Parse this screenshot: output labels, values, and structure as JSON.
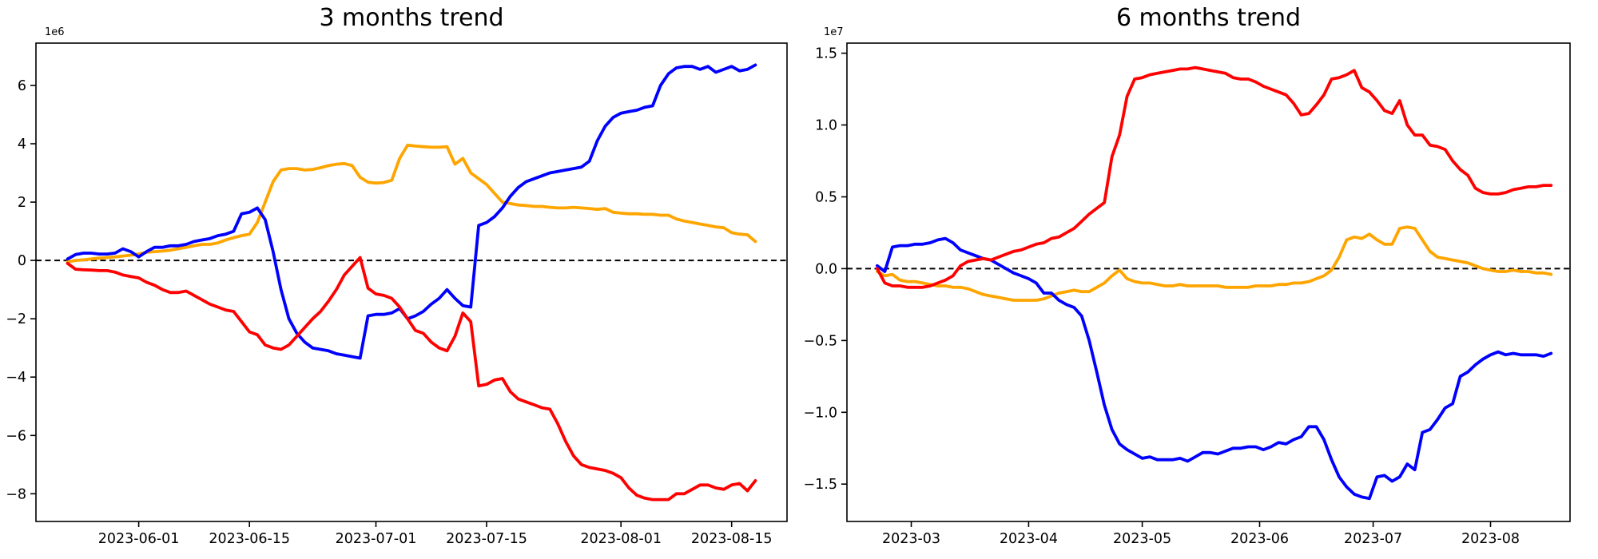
{
  "figure": {
    "background": "#ffffff"
  },
  "chart_data": [
    {
      "id": "left",
      "type": "line",
      "title": "3 months trend",
      "offset_label": "1e6",
      "unit_multiplier": 1000000,
      "grid": false,
      "legend": null,
      "xlim": [
        "2023-05-19",
        "2023-08-22"
      ],
      "ylim": [
        -8.95,
        7.45
      ],
      "x_start": "2023-05-23",
      "x_step_days": 1,
      "x_ticks": [
        {
          "date": "2023-06-01",
          "label": "2023-06-01"
        },
        {
          "date": "2023-06-15",
          "label": "2023-06-15"
        },
        {
          "date": "2023-07-01",
          "label": "2023-07-01"
        },
        {
          "date": "2023-07-15",
          "label": "2023-07-15"
        },
        {
          "date": "2023-08-01",
          "label": "2023-08-01"
        },
        {
          "date": "2023-08-15",
          "label": "2023-08-15"
        }
      ],
      "y_ticks": [
        {
          "value": 6,
          "label": "6"
        },
        {
          "value": 4,
          "label": "4"
        },
        {
          "value": 2,
          "label": "2"
        },
        {
          "value": 0,
          "label": "0"
        },
        {
          "value": -2,
          "label": "−2"
        },
        {
          "value": -4,
          "label": "−4"
        },
        {
          "value": -6,
          "label": "−6"
        },
        {
          "value": -8,
          "label": "−8"
        }
      ],
      "zero_line": {
        "y": 0,
        "style": "dashed",
        "color": "#000000"
      },
      "series": [
        {
          "name": "orange",
          "color": "#ffa500",
          "y": [
            -0.05,
            0.0,
            0.02,
            0.05,
            0.08,
            0.1,
            0.12,
            0.15,
            0.18,
            0.22,
            0.28,
            0.3,
            0.32,
            0.35,
            0.4,
            0.45,
            0.5,
            0.55,
            0.55,
            0.6,
            0.7,
            0.78,
            0.85,
            0.9,
            1.3,
            2.0,
            2.7,
            3.1,
            3.15,
            3.15,
            3.1,
            3.12,
            3.18,
            3.25,
            3.3,
            3.32,
            3.25,
            2.85,
            2.68,
            2.65,
            2.67,
            2.75,
            3.5,
            3.95,
            3.92,
            3.9,
            3.88,
            3.88,
            3.9,
            3.3,
            3.5,
            3.0,
            2.8,
            2.6,
            2.3,
            2.0,
            1.95,
            1.9,
            1.88,
            1.85,
            1.85,
            1.82,
            1.8,
            1.8,
            1.82,
            1.8,
            1.78,
            1.75,
            1.78,
            1.65,
            1.62,
            1.6,
            1.6,
            1.58,
            1.58,
            1.55,
            1.55,
            1.42,
            1.35,
            1.3,
            1.25,
            1.2,
            1.15,
            1.12,
            0.95,
            0.9,
            0.88,
            0.65
          ]
        },
        {
          "name": "blue",
          "color": "#0000ff",
          "y": [
            0.05,
            0.2,
            0.25,
            0.25,
            0.22,
            0.22,
            0.25,
            0.4,
            0.3,
            0.12,
            0.3,
            0.45,
            0.45,
            0.5,
            0.5,
            0.55,
            0.65,
            0.7,
            0.75,
            0.85,
            0.9,
            1.0,
            1.6,
            1.65,
            1.8,
            1.4,
            0.3,
            -1.0,
            -2.0,
            -2.5,
            -2.8,
            -3.0,
            -3.05,
            -3.1,
            -3.2,
            -3.25,
            -3.3,
            -3.35,
            -1.9,
            -1.85,
            -1.85,
            -1.8,
            -1.65,
            -2.0,
            -1.9,
            -1.75,
            -1.5,
            -1.3,
            -1.0,
            -1.3,
            -1.55,
            -1.6,
            1.2,
            1.3,
            1.5,
            1.8,
            2.2,
            2.5,
            2.7,
            2.8,
            2.9,
            3.0,
            3.05,
            3.1,
            3.15,
            3.2,
            3.4,
            4.1,
            4.6,
            4.9,
            5.05,
            5.1,
            5.15,
            5.25,
            5.3,
            6.0,
            6.4,
            6.6,
            6.65,
            6.65,
            6.55,
            6.65,
            6.45,
            6.55,
            6.65,
            6.5,
            6.55,
            6.7
          ]
        },
        {
          "name": "red",
          "color": "#ff0000",
          "y": [
            -0.1,
            -0.3,
            -0.32,
            -0.33,
            -0.35,
            -0.35,
            -0.4,
            -0.5,
            -0.55,
            -0.6,
            -0.75,
            -0.85,
            -1.0,
            -1.1,
            -1.1,
            -1.05,
            -1.2,
            -1.35,
            -1.5,
            -1.6,
            -1.7,
            -1.75,
            -2.1,
            -2.45,
            -2.55,
            -2.9,
            -3.0,
            -3.05,
            -2.9,
            -2.6,
            -2.3,
            -2.0,
            -1.75,
            -1.4,
            -1.0,
            -0.5,
            -0.2,
            0.1,
            -0.95,
            -1.15,
            -1.2,
            -1.3,
            -1.6,
            -2.0,
            -2.4,
            -2.5,
            -2.8,
            -3.0,
            -3.1,
            -2.6,
            -1.8,
            -2.1,
            -4.3,
            -4.25,
            -4.1,
            -4.05,
            -4.5,
            -4.75,
            -4.85,
            -4.95,
            -5.05,
            -5.1,
            -5.6,
            -6.2,
            -6.7,
            -7.0,
            -7.1,
            -7.15,
            -7.2,
            -7.3,
            -7.45,
            -7.8,
            -8.05,
            -8.15,
            -8.2,
            -8.2,
            -8.2,
            -8.0,
            -8.0,
            -7.85,
            -7.7,
            -7.7,
            -7.8,
            -7.85,
            -7.7,
            -7.65,
            -7.9,
            -7.55
          ]
        }
      ]
    },
    {
      "id": "right",
      "type": "line",
      "title": "6 months trend",
      "offset_label": "1e7",
      "unit_multiplier": 10000000,
      "grid": false,
      "legend": null,
      "xlim": [
        "2023-02-12",
        "2023-08-22"
      ],
      "ylim": [
        -1.76,
        1.57
      ],
      "x_start": "2023-02-20",
      "x_step_days": 2,
      "x_ticks": [
        {
          "date": "2023-03-01",
          "label": "2023-03"
        },
        {
          "date": "2023-04-01",
          "label": "2023-04"
        },
        {
          "date": "2023-05-01",
          "label": "2023-05"
        },
        {
          "date": "2023-06-01",
          "label": "2023-06"
        },
        {
          "date": "2023-07-01",
          "label": "2023-07"
        },
        {
          "date": "2023-08-01",
          "label": "2023-08"
        }
      ],
      "y_ticks": [
        {
          "value": 1.5,
          "label": "1.5"
        },
        {
          "value": 1.0,
          "label": "1.0"
        },
        {
          "value": 0.5,
          "label": "0.5"
        },
        {
          "value": 0.0,
          "label": "0.0"
        },
        {
          "value": -0.5,
          "label": "−0.5"
        },
        {
          "value": -1.0,
          "label": "−1.0"
        },
        {
          "value": -1.5,
          "label": "−1.5"
        }
      ],
      "zero_line": {
        "y": 0,
        "style": "dashed",
        "color": "#000000"
      },
      "series": [
        {
          "name": "orange",
          "color": "#ffa500",
          "y": [
            -0.02,
            -0.05,
            -0.04,
            -0.08,
            -0.09,
            -0.09,
            -0.1,
            -0.11,
            -0.12,
            -0.12,
            -0.13,
            -0.13,
            -0.14,
            -0.16,
            -0.18,
            -0.19,
            -0.2,
            -0.21,
            -0.22,
            -0.22,
            -0.22,
            -0.22,
            -0.21,
            -0.19,
            -0.17,
            -0.16,
            -0.15,
            -0.16,
            -0.16,
            -0.13,
            -0.1,
            -0.05,
            -0.01,
            -0.07,
            -0.09,
            -0.1,
            -0.1,
            -0.11,
            -0.12,
            -0.12,
            -0.11,
            -0.12,
            -0.12,
            -0.12,
            -0.12,
            -0.12,
            -0.13,
            -0.13,
            -0.13,
            -0.13,
            -0.12,
            -0.12,
            -0.12,
            -0.11,
            -0.11,
            -0.1,
            -0.1,
            -0.09,
            -0.07,
            -0.05,
            -0.01,
            0.08,
            0.2,
            0.22,
            0.21,
            0.24,
            0.2,
            0.17,
            0.17,
            0.28,
            0.29,
            0.28,
            0.2,
            0.12,
            0.08,
            0.07,
            0.06,
            0.05,
            0.04,
            0.02,
            0.0,
            -0.01,
            -0.02,
            -0.02,
            -0.01,
            -0.02,
            -0.02,
            -0.03,
            -0.03,
            -0.04
          ]
        },
        {
          "name": "blue",
          "color": "#0000ff",
          "y": [
            0.02,
            -0.02,
            0.15,
            0.16,
            0.16,
            0.17,
            0.17,
            0.18,
            0.2,
            0.21,
            0.18,
            0.13,
            0.11,
            0.09,
            0.07,
            0.06,
            0.03,
            0.0,
            -0.03,
            -0.05,
            -0.07,
            -0.1,
            -0.17,
            -0.17,
            -0.22,
            -0.25,
            -0.27,
            -0.33,
            -0.5,
            -0.72,
            -0.95,
            -1.12,
            -1.22,
            -1.26,
            -1.29,
            -1.32,
            -1.31,
            -1.33,
            -1.33,
            -1.33,
            -1.32,
            -1.34,
            -1.31,
            -1.28,
            -1.28,
            -1.29,
            -1.27,
            -1.25,
            -1.25,
            -1.24,
            -1.24,
            -1.26,
            -1.24,
            -1.21,
            -1.22,
            -1.19,
            -1.17,
            -1.1,
            -1.1,
            -1.19,
            -1.33,
            -1.45,
            -1.52,
            -1.57,
            -1.59,
            -1.6,
            -1.45,
            -1.44,
            -1.48,
            -1.45,
            -1.36,
            -1.4,
            -1.14,
            -1.12,
            -1.05,
            -0.97,
            -0.94,
            -0.75,
            -0.72,
            -0.67,
            -0.63,
            -0.6,
            -0.58,
            -0.6,
            -0.59,
            -0.6,
            -0.6,
            -0.6,
            -0.61,
            -0.59
          ]
        },
        {
          "name": "red",
          "color": "#ff0000",
          "y": [
            0.0,
            -0.1,
            -0.12,
            -0.12,
            -0.13,
            -0.13,
            -0.13,
            -0.12,
            -0.1,
            -0.08,
            -0.05,
            0.02,
            0.05,
            0.06,
            0.07,
            0.06,
            0.08,
            0.1,
            0.12,
            0.13,
            0.15,
            0.17,
            0.18,
            0.21,
            0.22,
            0.25,
            0.28,
            0.33,
            0.38,
            0.42,
            0.46,
            0.78,
            0.93,
            1.2,
            1.32,
            1.33,
            1.35,
            1.36,
            1.37,
            1.38,
            1.39,
            1.39,
            1.4,
            1.39,
            1.38,
            1.37,
            1.36,
            1.33,
            1.32,
            1.32,
            1.3,
            1.27,
            1.25,
            1.23,
            1.21,
            1.15,
            1.07,
            1.08,
            1.14,
            1.21,
            1.32,
            1.33,
            1.35,
            1.38,
            1.26,
            1.23,
            1.17,
            1.1,
            1.08,
            1.17,
            1.0,
            0.93,
            0.93,
            0.86,
            0.85,
            0.83,
            0.75,
            0.69,
            0.65,
            0.56,
            0.53,
            0.52,
            0.52,
            0.53,
            0.55,
            0.56,
            0.57,
            0.57,
            0.58,
            0.58
          ]
        }
      ]
    }
  ]
}
